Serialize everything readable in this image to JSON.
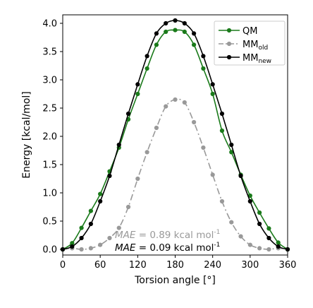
{
  "chart_data": {
    "type": "line",
    "xlabel": "Torsion angle [°]",
    "ylabel": "Energy [kcal/mol]",
    "xlim": [
      0,
      360
    ],
    "ylim": [
      -0.1,
      4.15
    ],
    "xticks": [
      0,
      60,
      120,
      180,
      240,
      300,
      360
    ],
    "yticks": [
      0.0,
      0.5,
      1.0,
      1.5,
      2.0,
      2.5,
      3.0,
      3.5,
      4.0
    ],
    "grid": false,
    "legend_position": "top-right",
    "series": [
      {
        "name": "QM",
        "color": "#1a7a1a",
        "line_style": "solid",
        "x": [
          0,
          15,
          30,
          45,
          60,
          75,
          90,
          105,
          120,
          135,
          150,
          165,
          180,
          195,
          210,
          225,
          240,
          255,
          270,
          285,
          300,
          315,
          330,
          345,
          360
        ],
        "values": [
          0.0,
          0.11,
          0.38,
          0.68,
          0.98,
          1.38,
          1.8,
          2.3,
          2.75,
          3.2,
          3.62,
          3.85,
          3.88,
          3.85,
          3.62,
          3.2,
          2.75,
          2.1,
          1.72,
          1.32,
          0.95,
          0.65,
          0.37,
          0.12,
          0.0
        ]
      },
      {
        "name_main": "MM",
        "name_sub": "old",
        "color": "#999999",
        "line_style": "dashdot",
        "x": [
          0,
          15,
          30,
          45,
          60,
          75,
          90,
          105,
          120,
          135,
          150,
          165,
          180,
          195,
          210,
          225,
          240,
          255,
          270,
          285,
          300,
          315,
          330,
          345,
          360
        ],
        "values": [
          0.0,
          0.02,
          0.0,
          0.02,
          0.08,
          0.2,
          0.38,
          0.75,
          1.25,
          1.72,
          2.15,
          2.53,
          2.65,
          2.6,
          2.25,
          1.8,
          1.32,
          0.85,
          0.48,
          0.23,
          0.08,
          0.02,
          0.0,
          0.02,
          0.0
        ]
      },
      {
        "name_main": "MM",
        "name_sub": "new",
        "color": "#000000",
        "line_style": "solid",
        "x": [
          0,
          15,
          30,
          45,
          60,
          75,
          90,
          105,
          120,
          135,
          150,
          165,
          180,
          195,
          210,
          225,
          240,
          255,
          270,
          285,
          300,
          315,
          330,
          345,
          360
        ],
        "values": [
          0.0,
          0.05,
          0.2,
          0.45,
          0.85,
          1.3,
          1.85,
          2.4,
          2.92,
          3.42,
          3.82,
          4.0,
          4.05,
          4.0,
          3.82,
          3.42,
          2.92,
          2.4,
          1.85,
          1.3,
          0.85,
          0.45,
          0.2,
          0.05,
          0.0
        ]
      }
    ],
    "annotations": [
      {
        "label": "MAE",
        "text": " = 0.89 kcal mol",
        "sup": "-1",
        "color": "#999999"
      },
      {
        "label": "MAE",
        "text": " = 0.09 kcal mol",
        "sup": "-1",
        "color": "#000000"
      }
    ]
  }
}
